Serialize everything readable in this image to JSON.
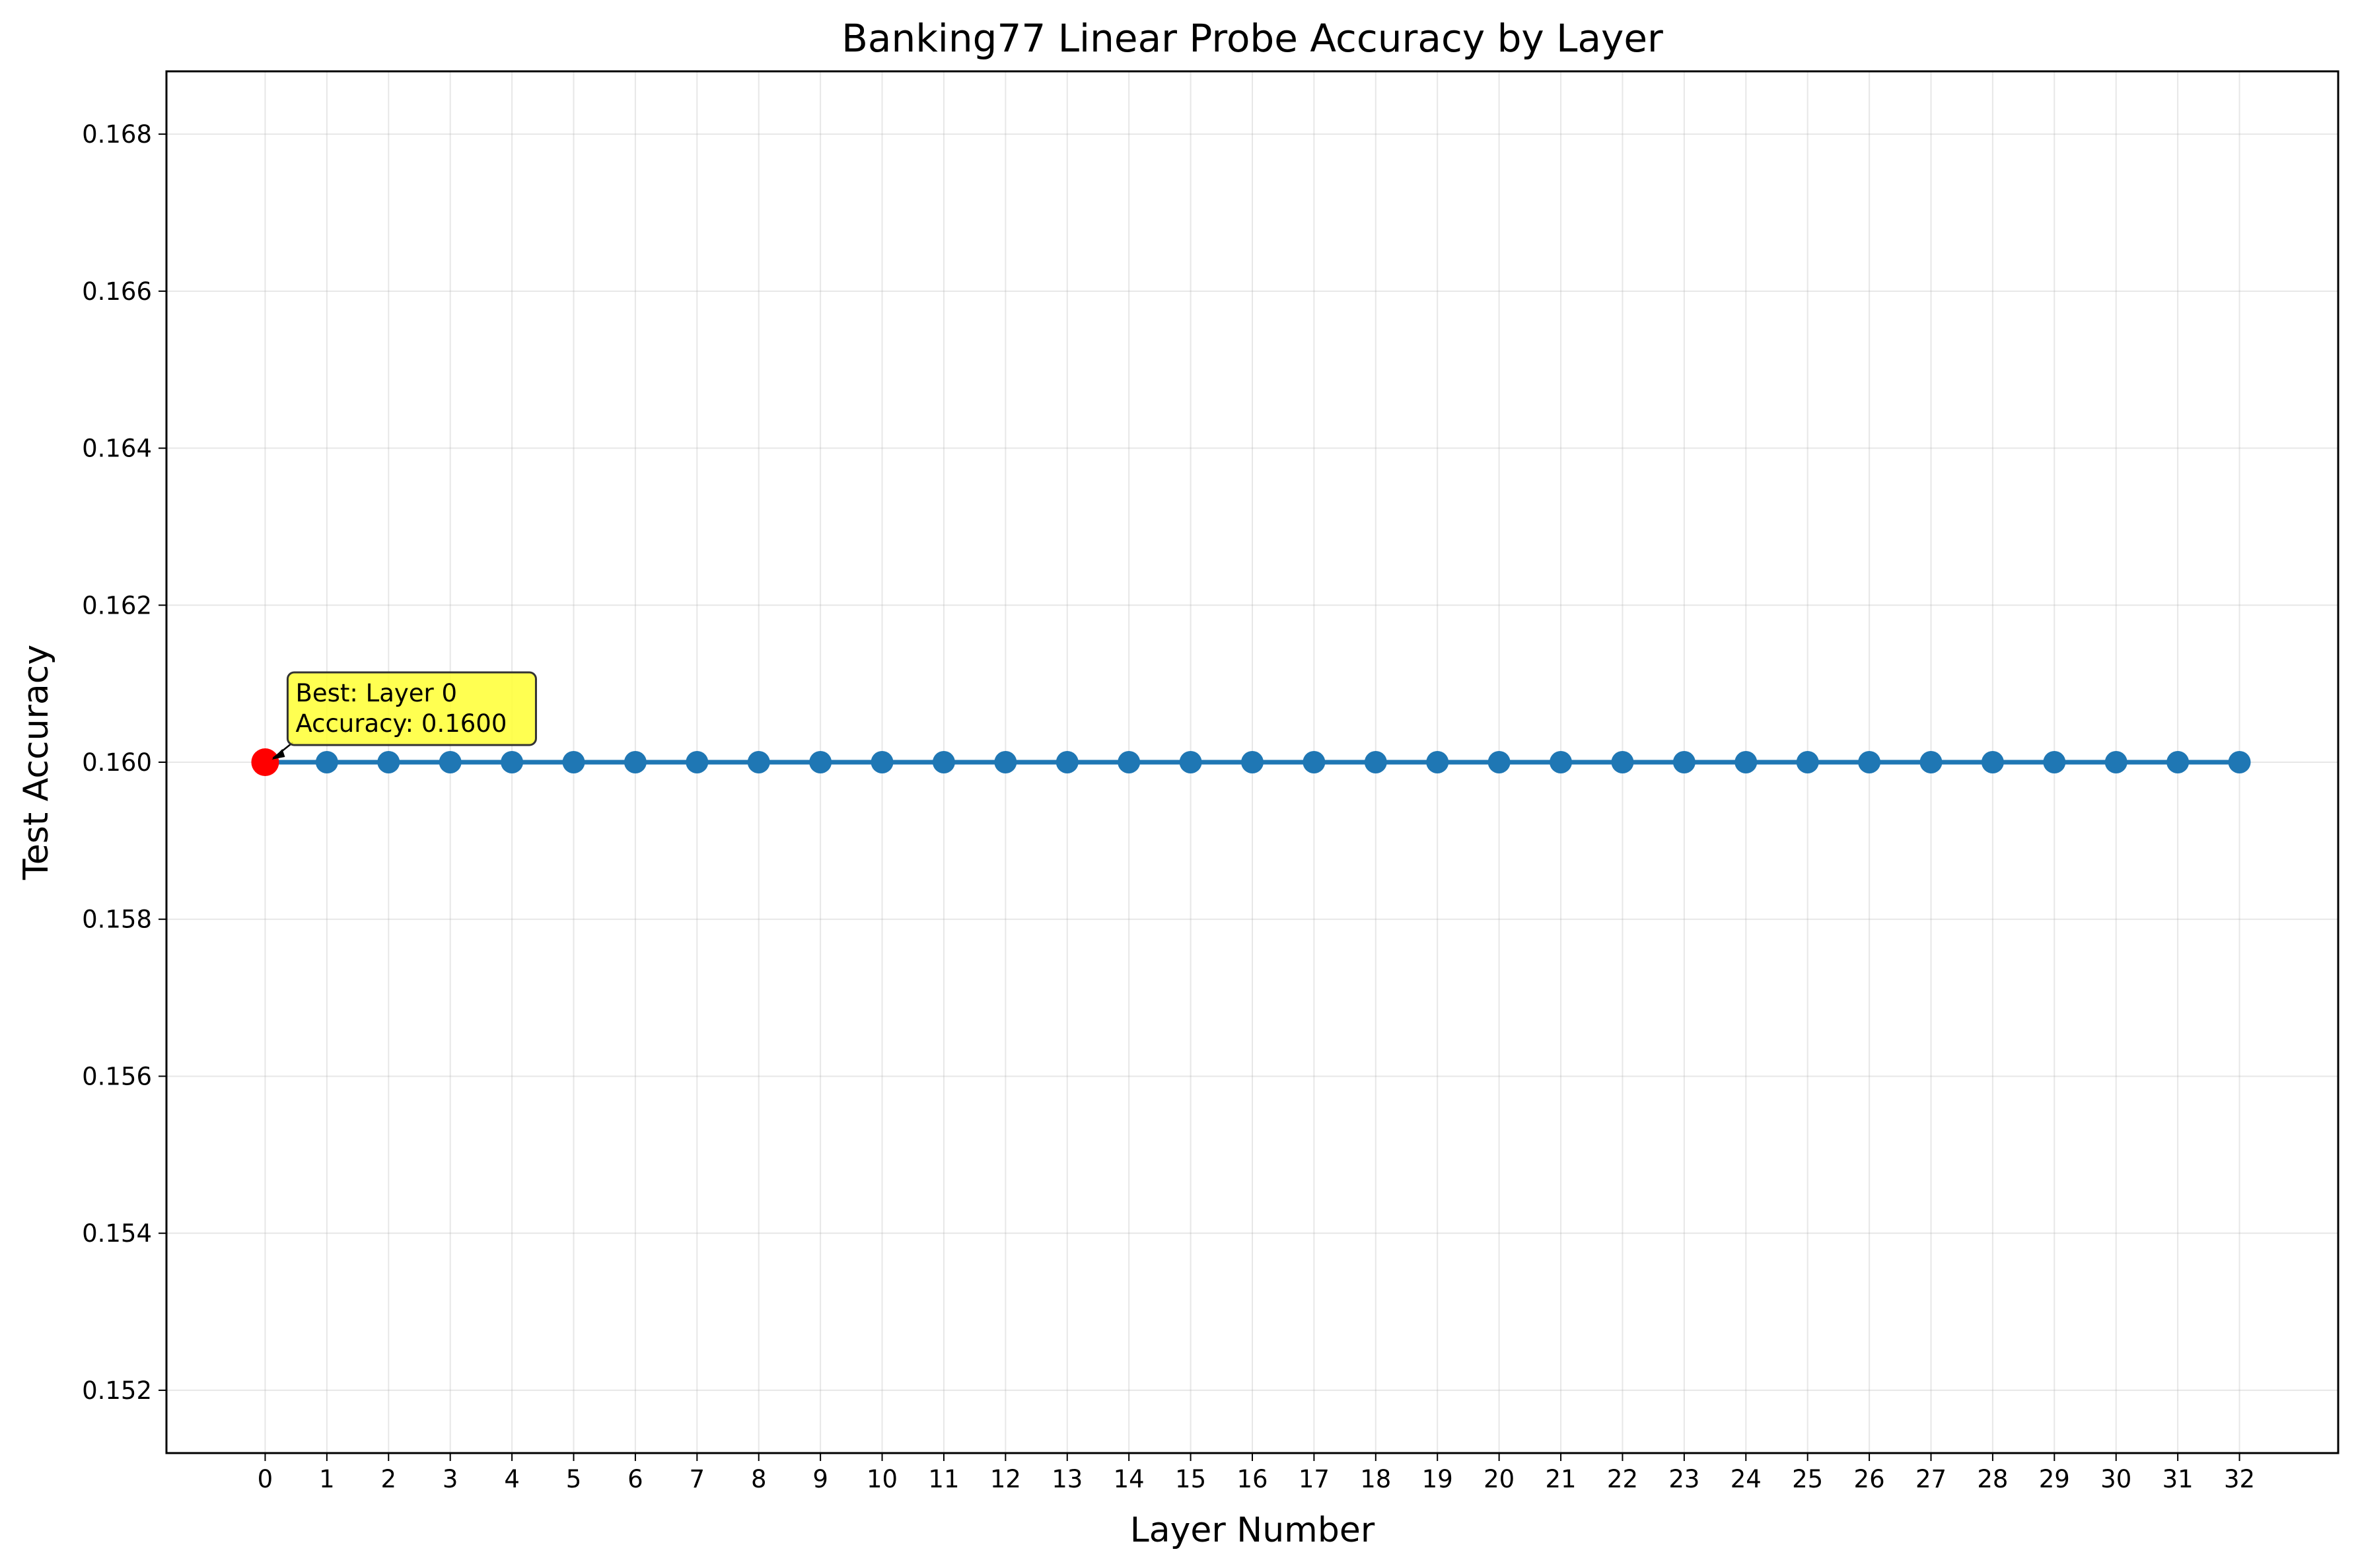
{
  "chart_data": {
    "type": "line",
    "title": "Banking77 Linear Probe Accuracy by Layer",
    "xlabel": "Layer Number",
    "ylabel": "Test Accuracy",
    "x": [
      0,
      1,
      2,
      3,
      4,
      5,
      6,
      7,
      8,
      9,
      10,
      11,
      12,
      13,
      14,
      15,
      16,
      17,
      18,
      19,
      20,
      21,
      22,
      23,
      24,
      25,
      26,
      27,
      28,
      29,
      30,
      31,
      32
    ],
    "series": [
      {
        "values": [
          0.16,
          0.16,
          0.16,
          0.16,
          0.16,
          0.16,
          0.16,
          0.16,
          0.16,
          0.16,
          0.16,
          0.16,
          0.16,
          0.16,
          0.16,
          0.16,
          0.16,
          0.16,
          0.16,
          0.16,
          0.16,
          0.16,
          0.16,
          0.16,
          0.16,
          0.16,
          0.16,
          0.16,
          0.16,
          0.16,
          0.16,
          0.16,
          0.16
        ],
        "color": "#1f77b4"
      }
    ],
    "xlim": [
      -1.6,
      33.6
    ],
    "ylim": [
      0.1512,
      0.1688
    ],
    "xticks": [
      "0",
      "1",
      "2",
      "3",
      "4",
      "5",
      "6",
      "7",
      "8",
      "9",
      "10",
      "11",
      "12",
      "13",
      "14",
      "15",
      "16",
      "17",
      "18",
      "19",
      "20",
      "21",
      "22",
      "23",
      "24",
      "25",
      "26",
      "27",
      "28",
      "29",
      "30",
      "31",
      "32"
    ],
    "yticks": [
      0.152,
      0.154,
      0.156,
      0.158,
      0.16,
      0.162,
      0.164,
      0.166,
      0.168
    ],
    "ytick_labels": [
      "0.152",
      "0.154",
      "0.156",
      "0.158",
      "0.160",
      "0.162",
      "0.164",
      "0.166",
      "0.168"
    ],
    "grid": true,
    "highlight": {
      "x": 0,
      "y": 0.16,
      "color": "#ff0000",
      "annotation_lines": [
        "Best: Layer 0",
        "Accuracy: 0.1600"
      ],
      "annotation_bg": "#ffff33"
    }
  }
}
